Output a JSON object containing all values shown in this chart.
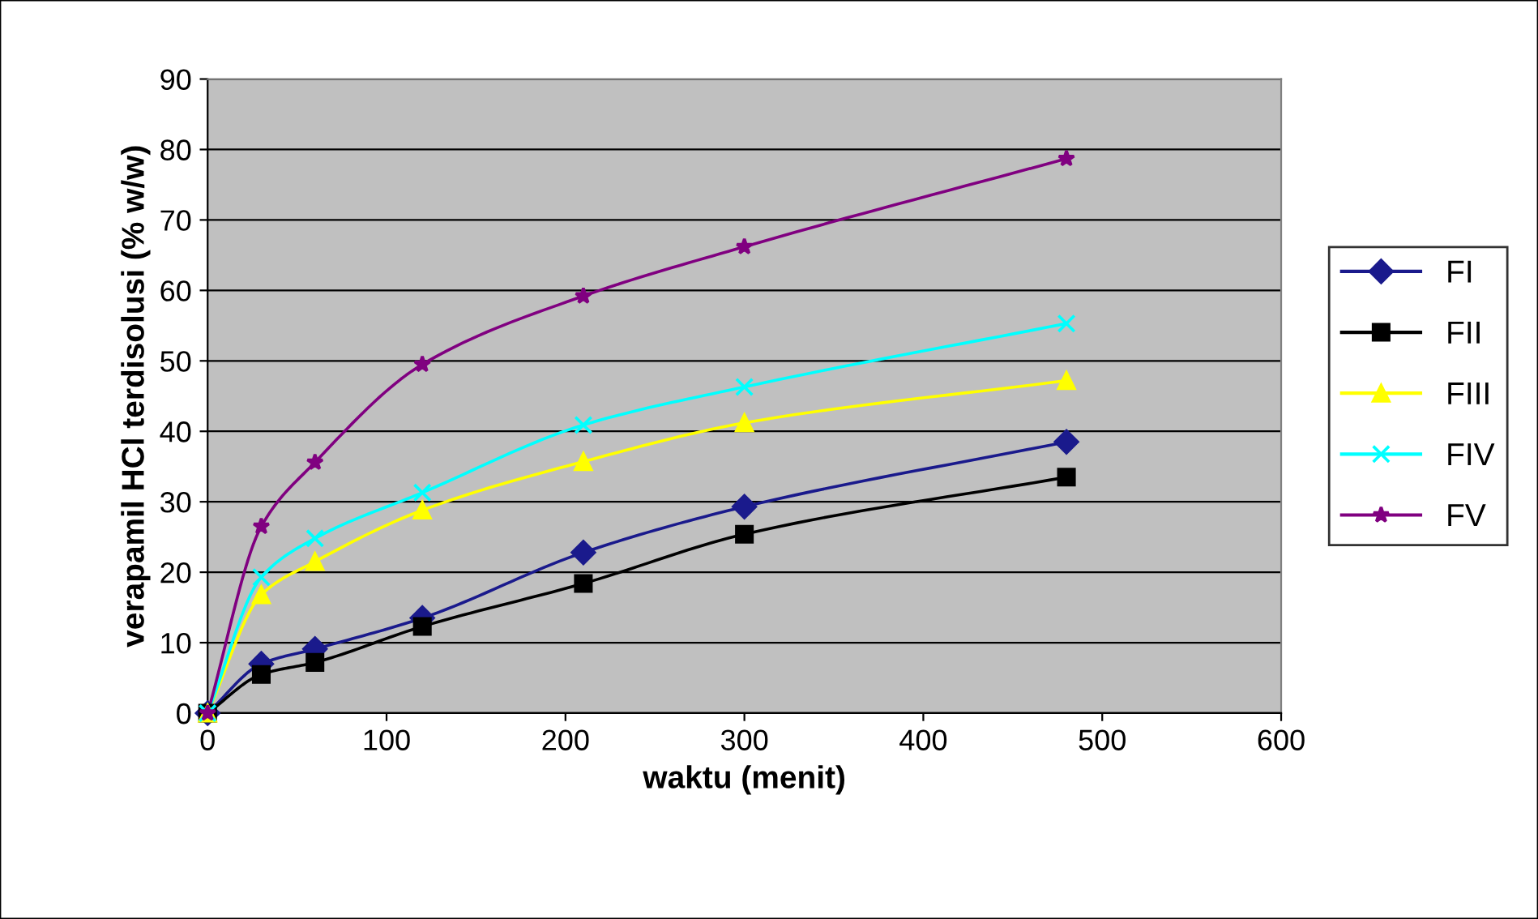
{
  "chart_data": {
    "type": "line",
    "xlabel": "waktu (menit)",
    "ylabel": "verapamil HCl terdisolusi (% w/w)",
    "x": [
      0,
      30,
      60,
      120,
      210,
      300,
      480
    ],
    "series": [
      {
        "name": "FI",
        "color": "#1a1a8c",
        "marker": "diamond",
        "values": [
          0,
          7.0,
          9.1,
          13.5,
          22.8,
          29.3,
          38.5
        ]
      },
      {
        "name": "FII",
        "color": "#000000",
        "marker": "square",
        "values": [
          0,
          5.5,
          7.2,
          12.3,
          18.4,
          25.4,
          33.5
        ]
      },
      {
        "name": "FIII",
        "color": "#ffff00",
        "marker": "triangle",
        "values": [
          0,
          16.8,
          21.5,
          28.8,
          35.7,
          41.2,
          47.2
        ]
      },
      {
        "name": "FIV",
        "color": "#00ffff",
        "marker": "cross",
        "values": [
          0,
          19.3,
          24.8,
          31.3,
          40.9,
          46.3,
          55.3
        ]
      },
      {
        "name": "FV",
        "color": "#800080",
        "marker": "star",
        "values": [
          0,
          26.5,
          35.6,
          49.5,
          59.2,
          66.2,
          78.7
        ]
      }
    ],
    "xlim": [
      0,
      600
    ],
    "xticks": [
      0,
      100,
      200,
      300,
      400,
      500,
      600
    ],
    "ylim": [
      0,
      90
    ],
    "yticks": [
      0,
      10,
      20,
      30,
      40,
      50,
      60,
      70,
      80,
      90
    ],
    "grid": "y",
    "legend": "right",
    "line_style": "solid"
  }
}
